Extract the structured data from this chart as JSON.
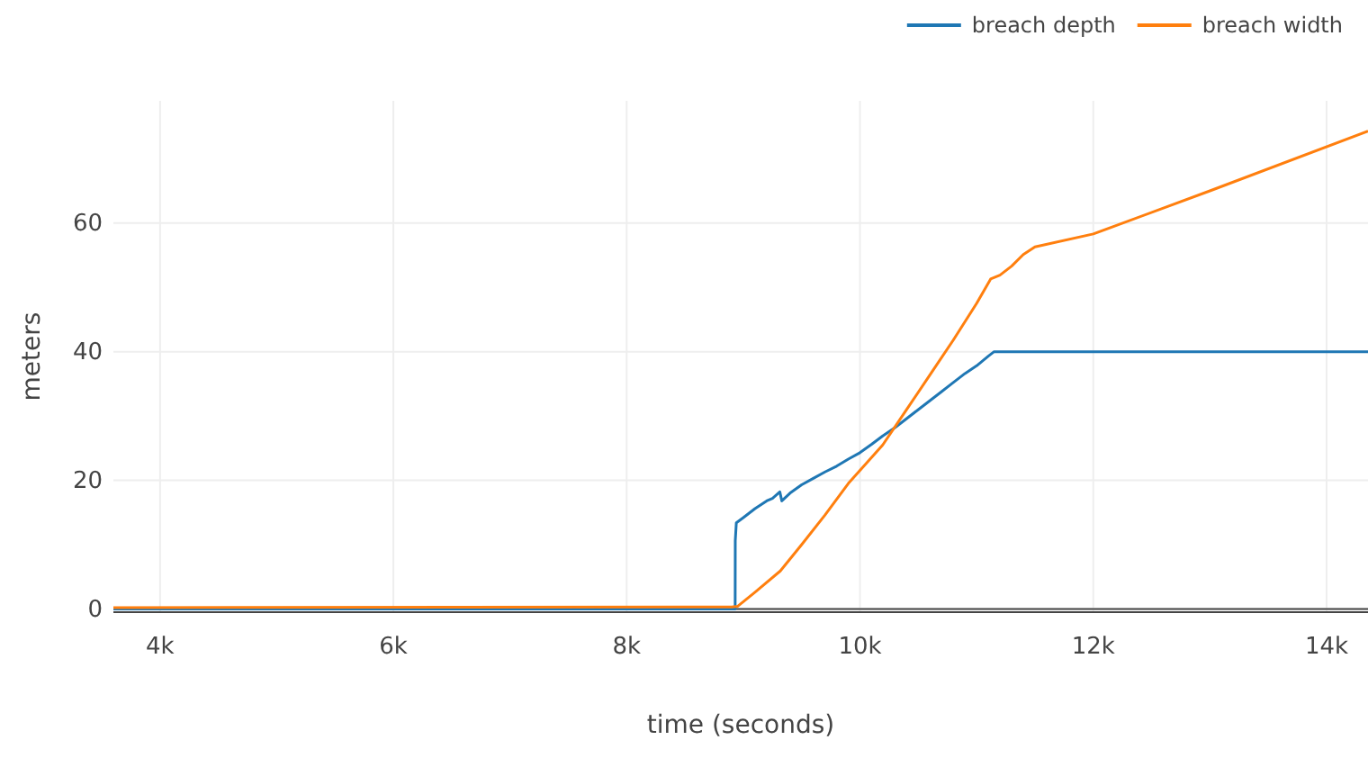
{
  "chart_data": {
    "type": "line",
    "xlabel": "time (seconds)",
    "ylabel": "meters",
    "xlim": [
      3600,
      14355
    ],
    "ylim": [
      -0.5,
      79
    ],
    "xticks": [
      {
        "value": 4000,
        "label": "4k"
      },
      {
        "value": 6000,
        "label": "6k"
      },
      {
        "value": 8000,
        "label": "8k"
      },
      {
        "value": 10000,
        "label": "10k"
      },
      {
        "value": 12000,
        "label": "12k"
      },
      {
        "value": 14000,
        "label": "14k"
      }
    ],
    "yticks": [
      0,
      20,
      40,
      60
    ],
    "grid": true,
    "legend": "top right",
    "series": [
      {
        "name": "breach depth",
        "color": "#1f77b4",
        "x": [
          3600,
          8930,
          8931,
          8940,
          9000,
          9100,
          9200,
          9250,
          9313,
          9330,
          9400,
          9500,
          9600,
          9700,
          9800,
          9900,
          10000,
          10100,
          10195,
          10300,
          10400,
          10500,
          10600,
          10700,
          10800,
          10900,
          11000,
          11100,
          11150,
          12000,
          13000,
          14355
        ],
        "values": [
          0,
          0,
          10.6,
          13.4,
          14.2,
          15.6,
          16.8,
          17.2,
          18.2,
          16.8,
          18,
          19.3,
          20.3,
          21.3,
          22.2,
          23.3,
          24.3,
          25.6,
          26.9,
          28.2,
          29.6,
          31,
          32.4,
          33.8,
          35.2,
          36.6,
          37.8,
          39.3,
          40,
          40,
          40,
          40
        ]
      },
      {
        "name": "breach width",
        "color": "#ff7f0e",
        "x": [
          3600,
          8900,
          8950,
          9100,
          9317,
          9500,
          9700,
          9900,
          10195,
          10400,
          10600,
          10800,
          11000,
          11120,
          11200,
          11300,
          11400,
          11500,
          12000,
          13000,
          14355
        ],
        "values": [
          0.2,
          0.3,
          0.4,
          2.6,
          5.9,
          10,
          14.6,
          19.5,
          25.5,
          31,
          36.4,
          41.8,
          47.5,
          51.3,
          51.9,
          53.3,
          55.1,
          56.3,
          58.3,
          65,
          74.3
        ]
      }
    ]
  }
}
